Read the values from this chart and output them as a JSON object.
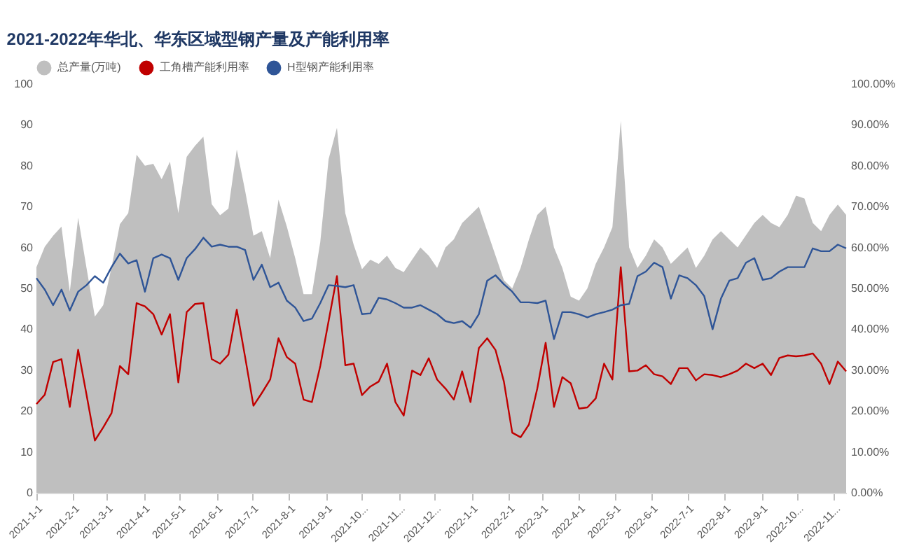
{
  "chart_data": {
    "type": "area",
    "title": "2021-2022年华北、华东区域型钢产量及产能利用率",
    "x": [
      "2021-01-01",
      "2021-01-08",
      "2021-01-15",
      "2021-01-22",
      "2021-01-29",
      "2021-02-05",
      "2021-02-12",
      "2021-02-19",
      "2021-02-26",
      "2021-03-05",
      "2021-03-12",
      "2021-03-19",
      "2021-03-26",
      "2021-04-02",
      "2021-04-09",
      "2021-04-16",
      "2021-04-23",
      "2021-04-30",
      "2021-05-07",
      "2021-05-14",
      "2021-05-21",
      "2021-05-28",
      "2021-06-04",
      "2021-06-11",
      "2021-06-18",
      "2021-06-25",
      "2021-07-02",
      "2021-07-09",
      "2021-07-16",
      "2021-07-23",
      "2021-07-30",
      "2021-08-06",
      "2021-08-13",
      "2021-08-20",
      "2021-08-27",
      "2021-09-03",
      "2021-09-10",
      "2021-09-17",
      "2021-09-24",
      "2021-10-01",
      "2021-10-08",
      "2021-10-15",
      "2021-10-22",
      "2021-10-29",
      "2021-11-05",
      "2021-11-12",
      "2021-11-19",
      "2021-11-26",
      "2021-12-03",
      "2021-12-10",
      "2021-12-17",
      "2021-12-24",
      "2021-12-31",
      "2022-01-07",
      "2022-01-14",
      "2022-01-21",
      "2022-01-28",
      "2022-02-04",
      "2022-02-11",
      "2022-02-18",
      "2022-02-25",
      "2022-03-04",
      "2022-03-11",
      "2022-03-18",
      "2022-03-25",
      "2022-04-01",
      "2022-04-08",
      "2022-04-15",
      "2022-04-22",
      "2022-04-29",
      "2022-05-06",
      "2022-05-13",
      "2022-05-20",
      "2022-05-27",
      "2022-06-03",
      "2022-06-10",
      "2022-06-17",
      "2022-06-24",
      "2022-07-01",
      "2022-07-08",
      "2022-07-15",
      "2022-07-22",
      "2022-07-29",
      "2022-08-05",
      "2022-08-12",
      "2022-08-19",
      "2022-08-26",
      "2022-09-02",
      "2022-09-09",
      "2022-09-16",
      "2022-09-23",
      "2022-09-30",
      "2022-10-07",
      "2022-10-14",
      "2022-10-21",
      "2022-10-28",
      "2022-11-04",
      "2022-11-11"
    ],
    "series": [
      {
        "name": "总产量(万吨)",
        "type": "area",
        "color": "#bfbfbf",
        "values": [
          55.2,
          60.2,
          62.9,
          65.1,
          49.2,
          67.3,
          55,
          43.1,
          45.9,
          55.2,
          65.7,
          68.4,
          82.7,
          80,
          80.5,
          76.7,
          81,
          68.4,
          82.2,
          84.9,
          87.1,
          70.6,
          67.9,
          69.5,
          84,
          73.9,
          62.9,
          64,
          57.4,
          71.7,
          65.1,
          57.4,
          48.6,
          48.6,
          61.3,
          81.6,
          89.3,
          68.4,
          60.7,
          54.7,
          57,
          56,
          58,
          55,
          54,
          57,
          60,
          58,
          55,
          60,
          62,
          66,
          68,
          70,
          64,
          58,
          52,
          50,
          55,
          62,
          68,
          70,
          60,
          55,
          48,
          47,
          50,
          56,
          60,
          65,
          91,
          60,
          55,
          58,
          62,
          60,
          56,
          58,
          60,
          55,
          58,
          62,
          64,
          62,
          60,
          63,
          66,
          68,
          66,
          65,
          68,
          72.7,
          72,
          66,
          64,
          68,
          70.5,
          68
        ]
      },
      {
        "name": "工角槽产能利用率",
        "type": "line",
        "axis": "y2",
        "color": "#c00000",
        "values": [
          21.7,
          24,
          32,
          32.7,
          21,
          35,
          24,
          12.8,
          16,
          19.5,
          31,
          29,
          46.4,
          45.6,
          43.7,
          38.7,
          43.7,
          27,
          44.2,
          46.2,
          46.4,
          32.7,
          31.6,
          33.8,
          44.8,
          33.2,
          21.3,
          24.4,
          27.7,
          37.8,
          33.2,
          31.6,
          22.8,
          22.2,
          31,
          42,
          53,
          31.2,
          31.6,
          23.9,
          26,
          27.2,
          31.6,
          22.2,
          18.9,
          29.9,
          28.8,
          32.9,
          27.7,
          25.5,
          22.8,
          29.7,
          22.2,
          35.4,
          37.8,
          34.9,
          27.2,
          14.7,
          13.6,
          16.7,
          25.5,
          36.7,
          21,
          28.3,
          26.8,
          20.6,
          20.9,
          23.1,
          31.6,
          27.7,
          55.2,
          29.7,
          29.9,
          31.2,
          29,
          28.5,
          26.6,
          30.5,
          30.5,
          27.5,
          29,
          28.8,
          28.3,
          29,
          29.9,
          31.6,
          30.5,
          31.6,
          28.8,
          33,
          33.6,
          33.4,
          33.6,
          34.1,
          31.6,
          26.6,
          32.1,
          29.7
        ]
      },
      {
        "name": "H型钢产能利用率",
        "type": "line",
        "axis": "y2",
        "color": "#2f5597",
        "values": [
          52.5,
          49.7,
          45.9,
          49.7,
          44.6,
          49.2,
          50.8,
          53,
          51.4,
          55.2,
          58.5,
          56.1,
          56.9,
          49.2,
          57.4,
          58.3,
          57.4,
          52.1,
          57.4,
          59.6,
          62.4,
          60.2,
          60.7,
          60.2,
          60.2,
          59.4,
          52.1,
          55.8,
          50.3,
          51.4,
          47,
          45.3,
          42,
          42.6,
          46.4,
          50.8,
          50.6,
          50.3,
          50.8,
          43.7,
          43.9,
          47.7,
          47.3,
          46.4,
          45.3,
          45.3,
          45.9,
          44.8,
          43.7,
          42,
          41.5,
          42,
          40.4,
          43.7,
          51.9,
          53.2,
          51,
          49.2,
          46.6,
          46.6,
          46.4,
          47,
          37.6,
          44.2,
          44.2,
          43.7,
          42.9,
          43.7,
          44.2,
          44.8,
          45.9,
          46.2,
          53,
          54.1,
          56.3,
          55.2,
          47.5,
          53.2,
          52.5,
          50.8,
          48.1,
          40,
          47.5,
          51.9,
          52.5,
          56.3,
          57.4,
          52.1,
          52.5,
          54.1,
          55.2,
          55.2,
          55.2,
          59.8,
          59.1,
          59.1,
          60.7,
          59.8
        ]
      }
    ],
    "xlim": [
      "2021-01-01",
      "2022-11-11"
    ],
    "xticks": [
      {
        "value": "2021-01-01",
        "label": "2021-1-1"
      },
      {
        "value": "2021-02-01",
        "label": "2021-2-1"
      },
      {
        "value": "2021-03-01",
        "label": "2021-3-1"
      },
      {
        "value": "2021-04-01",
        "label": "2021-4-1"
      },
      {
        "value": "2021-05-01",
        "label": "2021-5-1"
      },
      {
        "value": "2021-06-01",
        "label": "2021-6-1"
      },
      {
        "value": "2021-07-01",
        "label": "2021-7-1"
      },
      {
        "value": "2021-08-01",
        "label": "2021-8-1"
      },
      {
        "value": "2021-09-01",
        "label": "2021-9-1"
      },
      {
        "value": "2021-10-01",
        "label": "2021-10..."
      },
      {
        "value": "2021-11-01",
        "label": "2021-11..."
      },
      {
        "value": "2021-12-01",
        "label": "2021-12..."
      },
      {
        "value": "2022-01-01",
        "label": "2022-1-1"
      },
      {
        "value": "2022-02-01",
        "label": "2022-2-1"
      },
      {
        "value": "2022-03-01",
        "label": "2022-3-1"
      },
      {
        "value": "2022-04-01",
        "label": "2022-4-1"
      },
      {
        "value": "2022-05-01",
        "label": "2022-5-1"
      },
      {
        "value": "2022-06-01",
        "label": "2022-6-1"
      },
      {
        "value": "2022-07-01",
        "label": "2022-7-1"
      },
      {
        "value": "2022-08-01",
        "label": "2022-8-1"
      },
      {
        "value": "2022-09-01",
        "label": "2022-9-1"
      },
      {
        "value": "2022-10-01",
        "label": "2022-10..."
      },
      {
        "value": "2022-11-01",
        "label": "2022-11..."
      }
    ],
    "ylim": [
      0,
      100
    ],
    "yticks": [
      0,
      10,
      20,
      30,
      40,
      50,
      60,
      70,
      80,
      90,
      100
    ],
    "y2lim": [
      0,
      100
    ],
    "y2ticks": [
      {
        "value": 0,
        "label": "0.00%"
      },
      {
        "value": 10,
        "label": "10.00%"
      },
      {
        "value": 20,
        "label": "20.00%"
      },
      {
        "value": 30,
        "label": "30.00%"
      },
      {
        "value": 40,
        "label": "40.00%"
      },
      {
        "value": 50,
        "label": "50.00%"
      },
      {
        "value": 60,
        "label": "60.00%"
      },
      {
        "value": 70,
        "label": "70.00%"
      },
      {
        "value": 80,
        "label": "80.00%"
      },
      {
        "value": 90,
        "label": "90.00%"
      },
      {
        "value": 100,
        "label": "100.00%"
      }
    ],
    "legend": "top"
  }
}
